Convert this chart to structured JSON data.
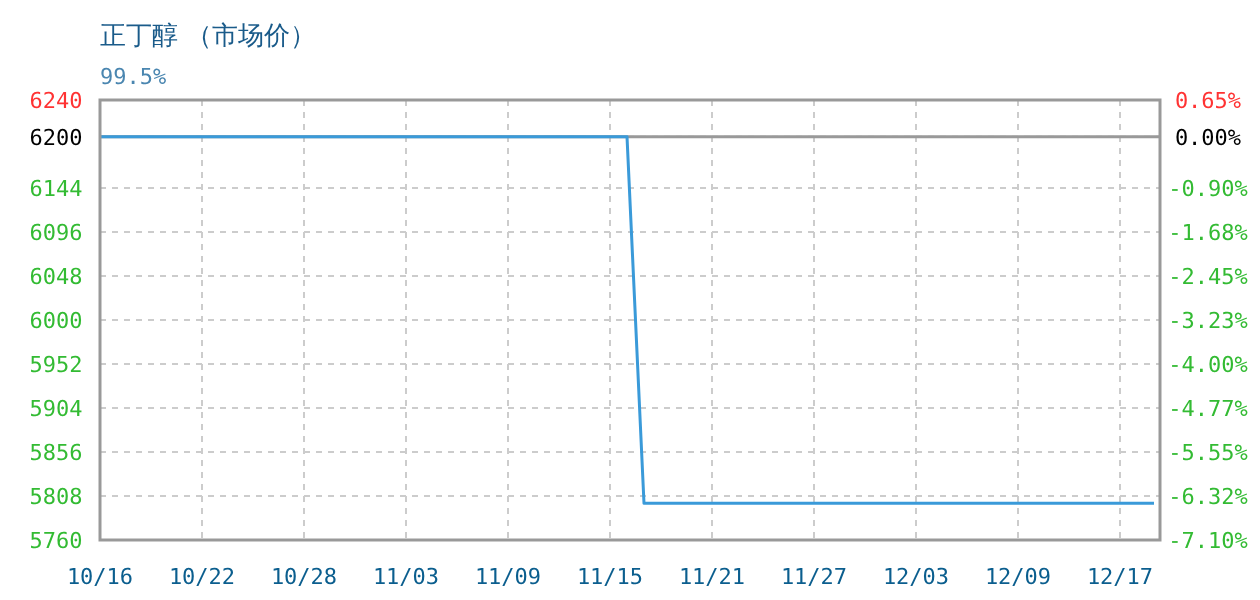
{
  "chart_data": {
    "type": "line",
    "title": "正丁醇 （市场价）",
    "subtitle": "99.5%",
    "categories": [
      "10/16",
      null,
      null,
      null,
      null,
      null,
      "10/22",
      null,
      null,
      null,
      null,
      null,
      "10/28",
      null,
      null,
      null,
      null,
      null,
      "11/03",
      null,
      null,
      null,
      null,
      null,
      "11/09",
      null,
      null,
      null,
      null,
      null,
      "11/15",
      null,
      null,
      null,
      null,
      null,
      "11/21",
      null,
      null,
      null,
      null,
      null,
      "11/27",
      null,
      null,
      null,
      null,
      null,
      "12/03",
      null,
      null,
      null,
      null,
      null,
      "12/09",
      null,
      null,
      null,
      null,
      null,
      "12/17",
      null,
      null
    ],
    "series": [
      {
        "color": "#3a9ad9",
        "values": [
          6200,
          6200,
          6200,
          6200,
          6200,
          6200,
          6200,
          6200,
          6200,
          6200,
          6200,
          6200,
          6200,
          6200,
          6200,
          6200,
          6200,
          6200,
          6200,
          6200,
          6200,
          6200,
          6200,
          6200,
          6200,
          6200,
          6200,
          6200,
          6200,
          6200,
          6200,
          6200,
          5800,
          5800,
          5800,
          5800,
          5800,
          5800,
          5800,
          5800,
          5800,
          5800,
          5800,
          5800,
          5800,
          5800,
          5800,
          5800,
          5800,
          5800,
          5800,
          5800,
          5800,
          5800,
          5800,
          5800,
          5800,
          5800,
          5800,
          5800,
          5800,
          5800,
          5800
        ]
      }
    ],
    "ylim": [
      5760,
      6240
    ],
    "yticks": [
      6240,
      6200,
      6144,
      6096,
      6048,
      6000,
      5952,
      5904,
      5856,
      5808,
      5760
    ],
    "y2lim": [
      -7.1,
      0.65
    ],
    "y2ticks": [
      {
        "value": 0.65,
        "label": "0.65%"
      },
      {
        "value": 0,
        "label": "0.00%"
      },
      {
        "value": -0.9,
        "label": "-0.90%"
      },
      {
        "value": -1.68,
        "label": "-1.68%"
      },
      {
        "value": -2.45,
        "label": "-2.45%"
      },
      {
        "value": -3.23,
        "label": "-3.23%"
      },
      {
        "value": -4.0,
        "label": "-4.00%"
      },
      {
        "value": -4.77,
        "label": "-4.77%"
      },
      {
        "value": -5.55,
        "label": "-5.55%"
      },
      {
        "value": -6.32,
        "label": "-6.32%"
      },
      {
        "value": -7.1,
        "label": "-7.10%"
      }
    ],
    "ref_lines": [
      {
        "axis": "y",
        "value": 6200,
        "color": "#999999",
        "line_style": "solid"
      }
    ],
    "grid": true,
    "marker": "none",
    "line_style": "solid"
  }
}
